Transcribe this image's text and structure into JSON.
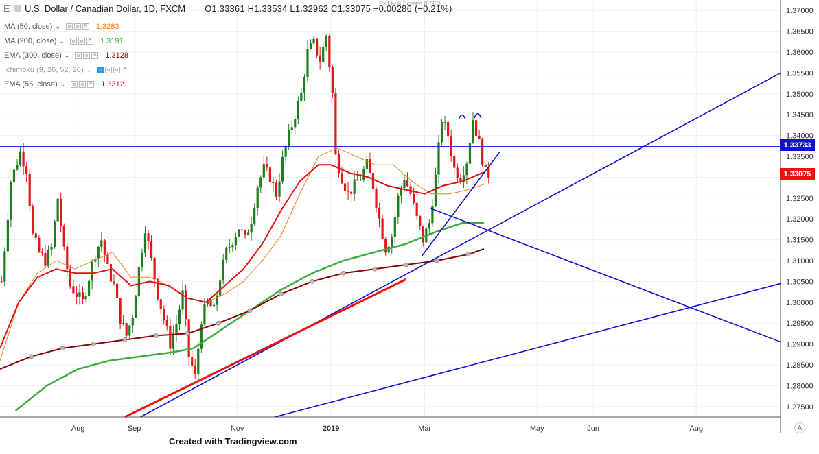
{
  "header": {
    "symbol": "U.S. Dollar / Canadian Dollar, 1D, FXCM",
    "ohlc": "O1.33361 H1.33534 L1.32962 C1.33075 −0.00286 (−0.21%)",
    "exit_fullscreen": "Exit Full Screen (ESC)"
  },
  "indicators": [
    {
      "name": "MA (50, close)",
      "value": "1.3283",
      "color": "#f07d1a"
    },
    {
      "name": "MA (200, close)",
      "value": "1.3191",
      "color": "#3bae3b"
    },
    {
      "name": "EMA (300, close)",
      "value": "1.3128",
      "color": "#8b0000"
    },
    {
      "name": "Ichimoku (9, 26, 52, 26)",
      "value": "",
      "color": "#2196f3"
    },
    {
      "name": "EMA (55, close)",
      "value": "1.3312",
      "color": "#e01010"
    }
  ],
  "footer": {
    "credit": "Created with Tradingview.com",
    "axis_mode": "A"
  },
  "chart_data": {
    "type": "candlestick",
    "title": "U.S. Dollar / Canadian Dollar, 1D, FXCM",
    "ylim": [
      1.2725,
      1.3725
    ],
    "y_ticks": [
      "1.37000",
      "1.36500",
      "1.36000",
      "1.35500",
      "1.35000",
      "1.34500",
      "1.34000",
      "1.33500",
      "1.33000",
      "1.32500",
      "1.32000",
      "1.31500",
      "1.31000",
      "1.30500",
      "1.30000",
      "1.29500",
      "1.29000",
      "1.28500",
      "1.28000",
      "1.27500"
    ],
    "x_ticks": [
      "Aug",
      "Sep",
      "Nov",
      "2019",
      "Mar",
      "May",
      "Jun",
      "Aug"
    ],
    "x_tick_index": [
      25,
      43,
      76,
      106,
      136,
      172,
      190,
      223
    ],
    "x_total_index": 250,
    "last_price": "1.33075",
    "resistance_level": "1.33733",
    "colors": {
      "up": "#1e7d1e",
      "down": "#e01818",
      "ma50": "#f07d1a",
      "ma200": "#3bae3b",
      "ema300": "#8b0000",
      "ema55": "#e01010",
      "trendline": "#1010d0",
      "red_trend": "#ee1010",
      "price_badge": "#f01010",
      "level_badge": "#1010d0"
    },
    "price_anchors": [
      [
        0,
        1.305
      ],
      [
        3,
        1.329
      ],
      [
        6,
        1.336
      ],
      [
        8,
        1.332
      ],
      [
        10,
        1.316
      ],
      [
        12,
        1.312
      ],
      [
        14,
        1.31
      ],
      [
        16,
        1.313
      ],
      [
        18,
        1.325
      ],
      [
        20,
        1.312
      ],
      [
        22,
        1.304
      ],
      [
        24,
        1.302
      ],
      [
        26,
        1.3
      ],
      [
        28,
        1.306
      ],
      [
        30,
        1.312
      ],
      [
        32,
        1.315
      ],
      [
        34,
        1.308
      ],
      [
        36,
        1.304
      ],
      [
        38,
        1.296
      ],
      [
        40,
        1.292
      ],
      [
        42,
        1.297
      ],
      [
        44,
        1.308
      ],
      [
        46,
        1.318
      ],
      [
        48,
        1.31
      ],
      [
        50,
        1.302
      ],
      [
        52,
        1.296
      ],
      [
        54,
        1.29
      ],
      [
        56,
        1.295
      ],
      [
        58,
        1.302
      ],
      [
        60,
        1.287
      ],
      [
        62,
        1.282
      ],
      [
        64,
        1.296
      ],
      [
        66,
        1.3
      ],
      [
        68,
        1.298
      ],
      [
        70,
        1.306
      ],
      [
        72,
        1.312
      ],
      [
        74,
        1.315
      ],
      [
        76,
        1.318
      ],
      [
        78,
        1.315
      ],
      [
        80,
        1.32
      ],
      [
        82,
        1.328
      ],
      [
        84,
        1.332
      ],
      [
        86,
        1.33
      ],
      [
        88,
        1.326
      ],
      [
        90,
        1.334
      ],
      [
        92,
        1.34
      ],
      [
        94,
        1.345
      ],
      [
        96,
        1.35
      ],
      [
        98,
        1.36
      ],
      [
        100,
        1.362
      ],
      [
        102,
        1.358
      ],
      [
        104,
        1.364
      ],
      [
        106,
        1.35
      ],
      [
        107,
        1.335
      ],
      [
        109,
        1.33
      ],
      [
        111,
        1.326
      ],
      [
        113,
        1.328
      ],
      [
        115,
        1.33
      ],
      [
        117,
        1.333
      ],
      [
        119,
        1.328
      ],
      [
        121,
        1.32
      ],
      [
        123,
        1.313
      ],
      [
        125,
        1.316
      ],
      [
        127,
        1.325
      ],
      [
        129,
        1.33
      ],
      [
        131,
        1.326
      ],
      [
        133,
        1.32
      ],
      [
        135,
        1.315
      ],
      [
        137,
        1.319
      ],
      [
        139,
        1.33
      ],
      [
        141,
        1.344
      ],
      [
        143,
        1.34
      ],
      [
        145,
        1.332
      ],
      [
        147,
        1.33
      ],
      [
        149,
        1.334
      ],
      [
        151,
        1.344
      ],
      [
        153,
        1.338
      ],
      [
        155,
        1.331
      ],
      [
        156,
        1.3307
      ]
    ],
    "ma50": [
      [
        0,
        1.286
      ],
      [
        6,
        1.3
      ],
      [
        12,
        1.307
      ],
      [
        18,
        1.31
      ],
      [
        24,
        1.308
      ],
      [
        30,
        1.31
      ],
      [
        36,
        1.312
      ],
      [
        42,
        1.306
      ],
      [
        48,
        1.306
      ],
      [
        54,
        1.304
      ],
      [
        60,
        1.301
      ],
      [
        66,
        1.3
      ],
      [
        72,
        1.302
      ],
      [
        78,
        1.305
      ],
      [
        84,
        1.31
      ],
      [
        90,
        1.316
      ],
      [
        96,
        1.326
      ],
      [
        102,
        1.335
      ],
      [
        108,
        1.337
      ],
      [
        114,
        1.335
      ],
      [
        120,
        1.333
      ],
      [
        126,
        1.333
      ],
      [
        132,
        1.329
      ],
      [
        138,
        1.326
      ],
      [
        144,
        1.326
      ],
      [
        150,
        1.327
      ],
      [
        155,
        1.3283
      ]
    ],
    "ma200": [
      [
        5,
        1.274
      ],
      [
        15,
        1.28
      ],
      [
        25,
        1.284
      ],
      [
        35,
        1.286
      ],
      [
        45,
        1.287
      ],
      [
        55,
        1.288
      ],
      [
        62,
        1.289
      ],
      [
        70,
        1.293
      ],
      [
        80,
        1.298
      ],
      [
        90,
        1.303
      ],
      [
        100,
        1.307
      ],
      [
        110,
        1.31
      ],
      [
        120,
        1.312
      ],
      [
        130,
        1.314
      ],
      [
        140,
        1.317
      ],
      [
        148,
        1.319
      ],
      [
        155,
        1.3191
      ]
    ],
    "ema300": [
      [
        0,
        1.284
      ],
      [
        10,
        1.287
      ],
      [
        20,
        1.289
      ],
      [
        30,
        1.29
      ],
      [
        40,
        1.291
      ],
      [
        50,
        1.292
      ],
      [
        60,
        1.2925
      ],
      [
        70,
        1.295
      ],
      [
        80,
        1.298
      ],
      [
        90,
        1.302
      ],
      [
        100,
        1.305
      ],
      [
        110,
        1.307
      ],
      [
        120,
        1.308
      ],
      [
        130,
        1.309
      ],
      [
        140,
        1.31
      ],
      [
        150,
        1.3115
      ],
      [
        155,
        1.3128
      ]
    ],
    "ema55": [
      [
        0,
        1.289
      ],
      [
        6,
        1.3
      ],
      [
        12,
        1.306
      ],
      [
        18,
        1.308
      ],
      [
        24,
        1.307
      ],
      [
        30,
        1.307
      ],
      [
        36,
        1.308
      ],
      [
        42,
        1.304
      ],
      [
        48,
        1.305
      ],
      [
        54,
        1.304
      ],
      [
        60,
        1.301
      ],
      [
        66,
        1.3
      ],
      [
        72,
        1.304
      ],
      [
        78,
        1.308
      ],
      [
        84,
        1.314
      ],
      [
        90,
        1.322
      ],
      [
        96,
        1.329
      ],
      [
        102,
        1.333
      ],
      [
        106,
        1.333
      ],
      [
        112,
        1.331
      ],
      [
        118,
        1.33
      ],
      [
        124,
        1.328
      ],
      [
        130,
        1.327
      ],
      [
        136,
        1.326
      ],
      [
        142,
        1.328
      ],
      [
        148,
        1.329
      ],
      [
        155,
        1.3312
      ]
    ],
    "trendlines": [
      {
        "color": "#1010d0",
        "from": [
          45,
          1.2725
        ],
        "to": [
          250,
          1.355
        ]
      },
      {
        "color": "#1010d0",
        "from": [
          88,
          1.2725
        ],
        "to": [
          250,
          1.3045
        ]
      },
      {
        "color": "#1010d0",
        "from": [
          138,
          1.3225
        ],
        "to": [
          250,
          1.2905
        ]
      },
      {
        "color": "#1010d0",
        "from": [
          135,
          1.311
        ],
        "to": [
          160,
          1.336
        ]
      },
      {
        "color": "#ee1010",
        "from": [
          40,
          1.2725
        ],
        "to": [
          130,
          1.3055
        ]
      }
    ],
    "horizontal_level": 1.33733,
    "arcs": [
      [
        148,
        1.3447
      ],
      [
        153,
        1.345
      ]
    ]
  }
}
